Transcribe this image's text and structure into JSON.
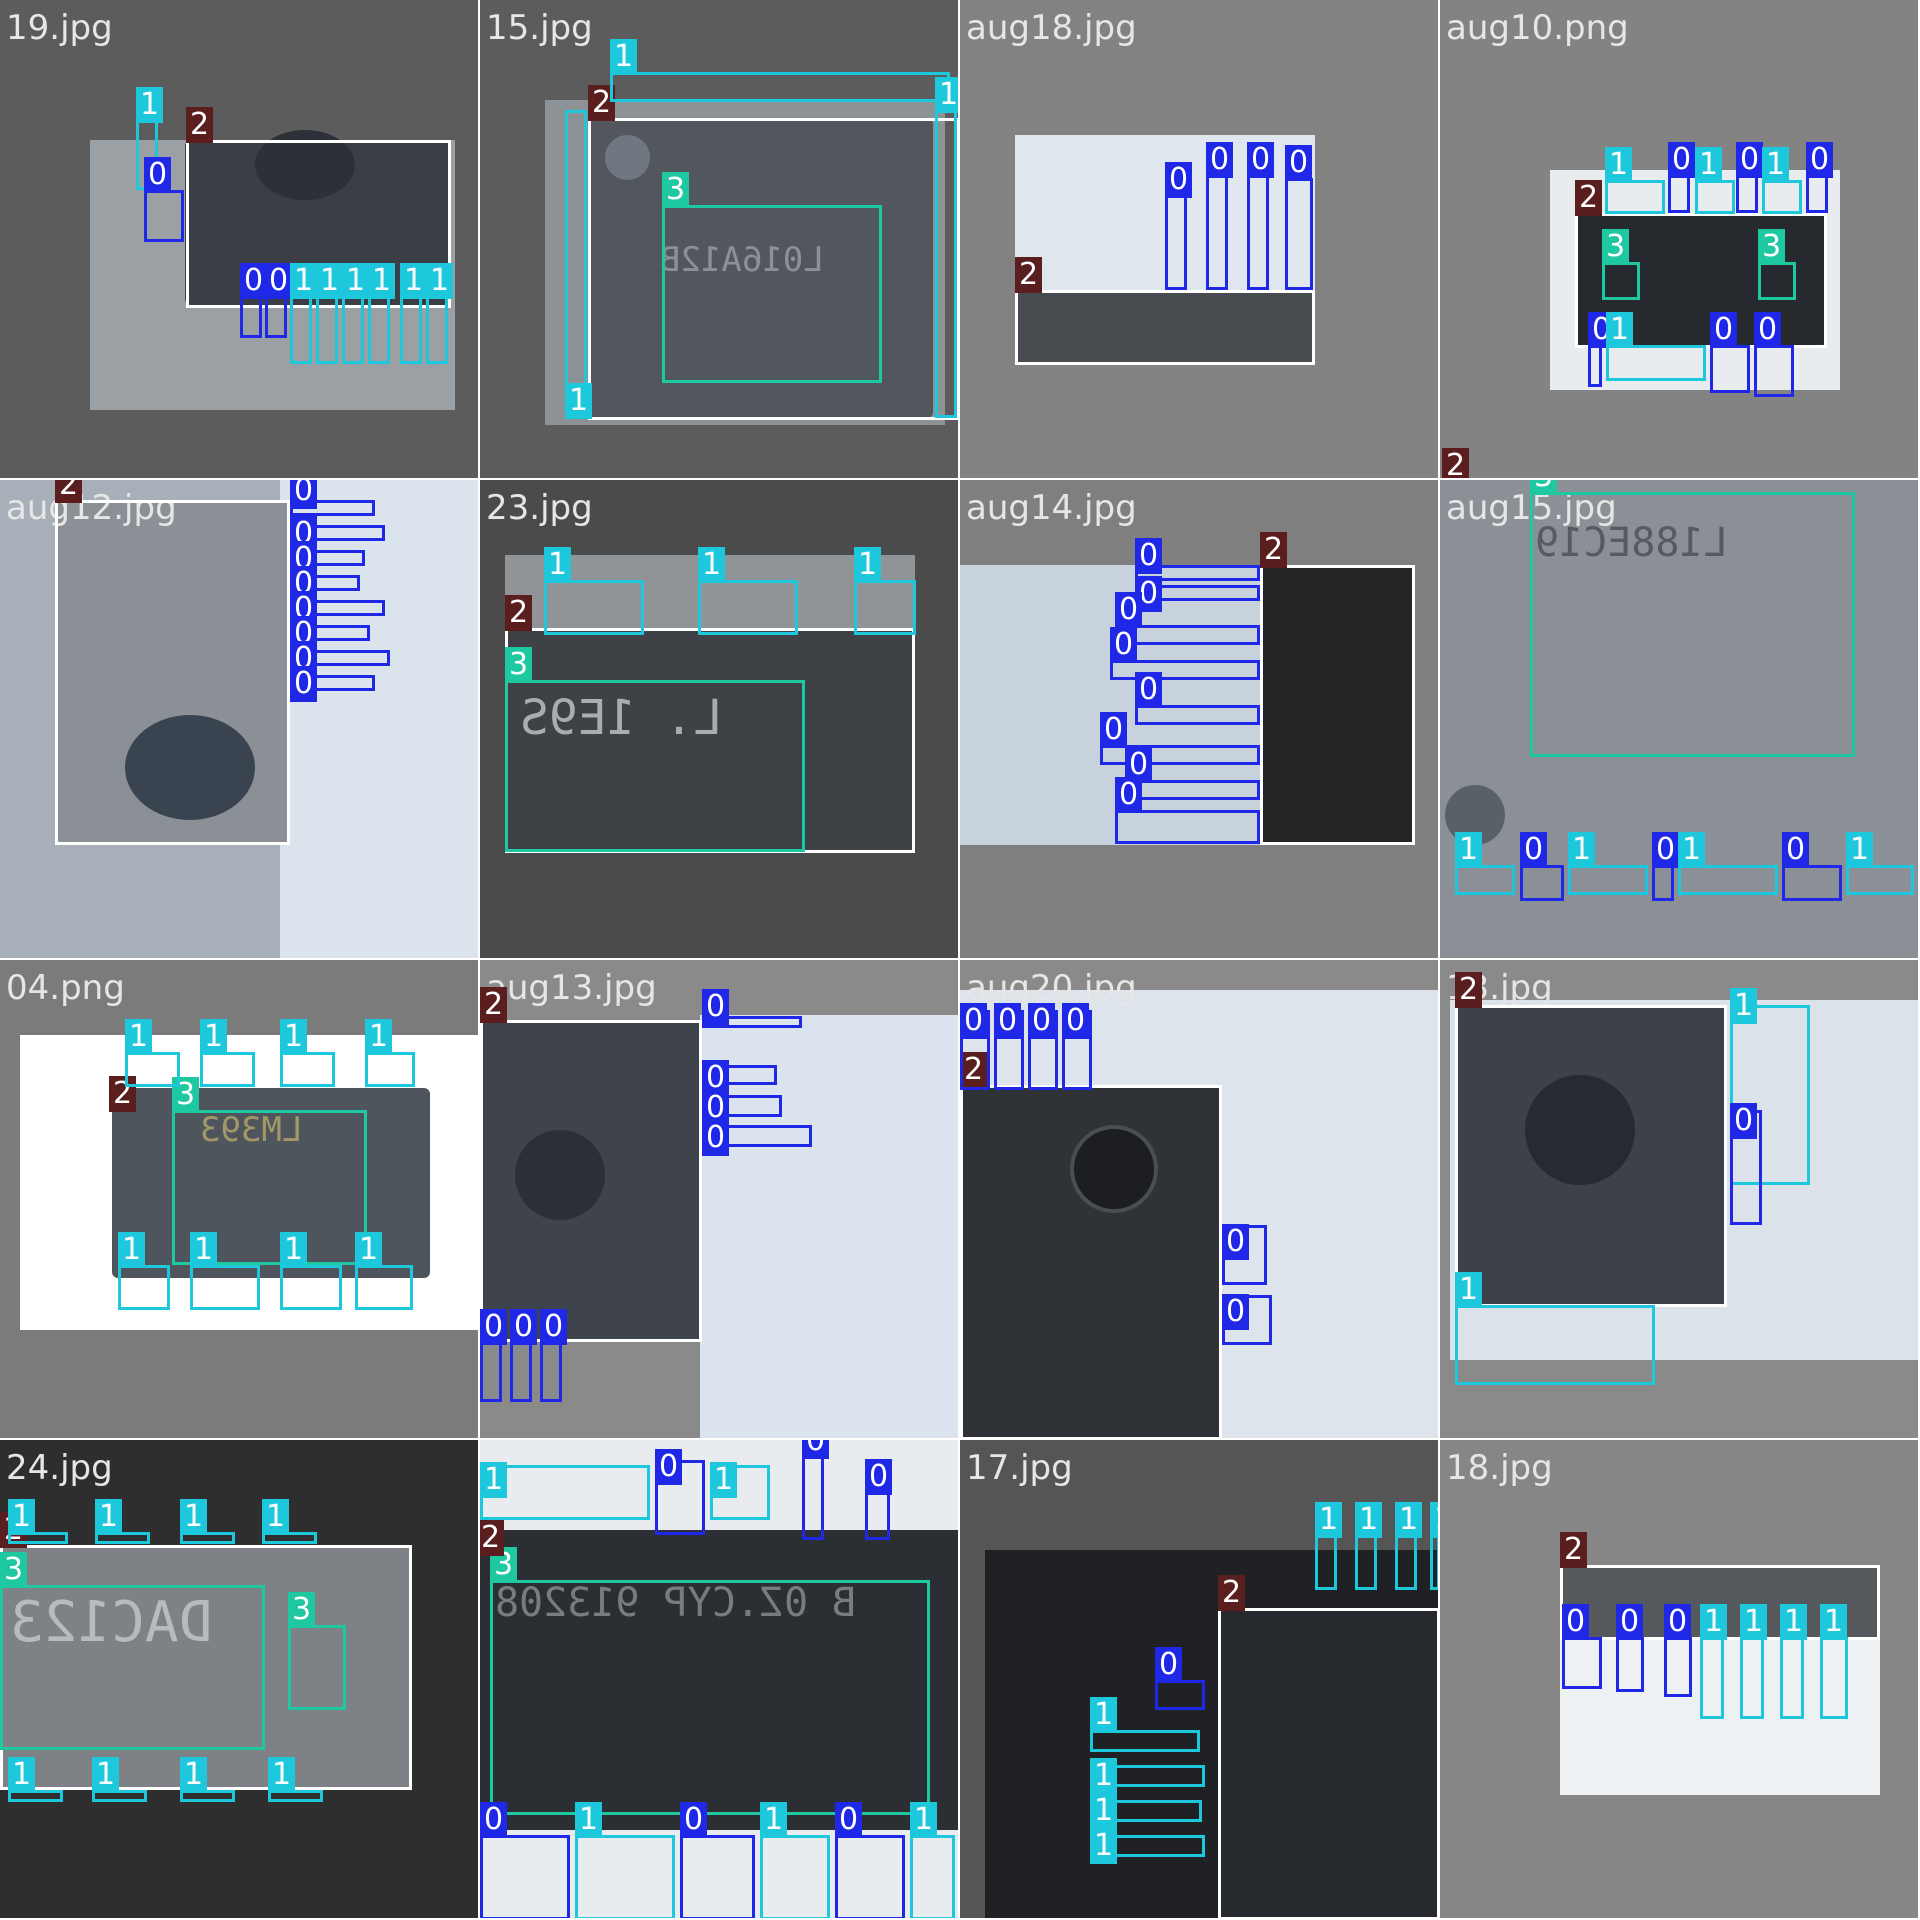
{
  "palette": {
    "c0": "#1e28e6",
    "c1": "#1ec8dc",
    "c2": "#5a1e1e",
    "c3": "#1ec8a0",
    "box2": "#ffffff"
  },
  "tiles": [
    {
      "name": "19.jpg",
      "labels": [
        "1",
        "1",
        "0",
        "0",
        "2",
        "0",
        "0",
        "1",
        "1",
        "1",
        "1",
        "1",
        "1",
        "1"
      ]
    },
    {
      "name": "15.jpg",
      "labels": [
        "2",
        "3",
        "1",
        "1",
        "1"
      ]
    },
    {
      "name": "aug18.jpg",
      "labels": [
        "2",
        "0",
        "0",
        "0",
        "0"
      ]
    },
    {
      "name": "aug10.png",
      "labels": [
        "2",
        "3",
        "3",
        "1",
        "1",
        "0",
        "1",
        "1",
        "0",
        "0",
        "1",
        "1",
        "1",
        "0",
        "1",
        "0",
        "1",
        "1",
        "1",
        "1",
        "1",
        "0",
        "0",
        "0",
        "0"
      ]
    },
    {
      "name": "aug12.jpg",
      "labels": [
        "2",
        "0",
        "0",
        "0",
        "0",
        "0",
        "0",
        "0",
        "0"
      ]
    },
    {
      "name": "23.jpg",
      "labels": [
        "1",
        "1",
        "1",
        "2",
        "3"
      ]
    },
    {
      "name": "aug14.jpg",
      "labels": [
        "2",
        "0",
        "0",
        "0",
        "0",
        "0",
        "0",
        "0",
        "0",
        "0"
      ]
    },
    {
      "name": "aug15.jpg",
      "labels": [
        "2",
        "3",
        "1",
        "1",
        "0",
        "0",
        "1",
        "1",
        "1",
        "1",
        "0",
        "1",
        "1",
        "1",
        "1",
        "1",
        "1",
        "1",
        "0",
        "0",
        "0",
        "1",
        "1",
        "1",
        "1"
      ]
    },
    {
      "name": "04.png",
      "labels": [
        "1",
        "1",
        "1",
        "1",
        "2",
        "3",
        "1",
        "1",
        "1",
        "1"
      ]
    },
    {
      "name": "aug13.jpg",
      "labels": [
        "2",
        "0",
        "1",
        "0",
        "0",
        "0",
        "0",
        "0",
        "0",
        "0"
      ]
    },
    {
      "name": "aug20.jpg",
      "labels": [
        "0",
        "0",
        "0",
        "0",
        "0",
        "0",
        "0",
        "2",
        "0",
        "0"
      ]
    },
    {
      "name": "13.jpg",
      "labels": [
        "2",
        "1",
        "1",
        "1",
        "1",
        "0",
        "0",
        "1",
        "1",
        "1",
        "1",
        "1",
        "1",
        "1",
        "1"
      ]
    },
    {
      "name": "24.jpg",
      "labels": [
        "1",
        "1",
        "1",
        "1",
        "2",
        "3",
        "3",
        "1",
        "1",
        "1",
        "1"
      ]
    },
    {
      "name": "aug08.jpg",
      "labels": [
        "1",
        "1",
        "1",
        "1",
        "1",
        "0",
        "0",
        "1",
        "1",
        "0",
        "1",
        "0",
        "2",
        "3",
        "0",
        "0",
        "0",
        "1",
        "1",
        "1",
        "0",
        "1",
        "1",
        "0",
        "0",
        "1"
      ]
    },
    {
      "name": "17.jpg",
      "labels": [
        "1",
        "1",
        "1",
        "1",
        "2",
        "0",
        "1",
        "1",
        "1",
        "1"
      ]
    },
    {
      "name": "18.jpg",
      "labels": [
        "2",
        "0",
        "0",
        "0",
        "1",
        "1",
        "1",
        "1"
      ]
    }
  ]
}
